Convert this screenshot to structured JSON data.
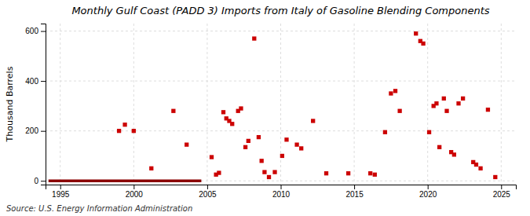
{
  "chart_data": {
    "type": "scatter",
    "title": "Monthly Gulf Coast (PADD 3) Imports from Italy of Gasoline Blending Components",
    "ylabel": "Thousand Barrels",
    "annotations": [
      "Source: U.S. Energy Information Administration"
    ],
    "xlim": [
      1994.0,
      2026.0
    ],
    "ylim": [
      -15,
      630
    ],
    "xticks": [
      1995,
      2000,
      2005,
      2010,
      2015,
      2020,
      2025
    ],
    "yticks": [
      0,
      200,
      400,
      600
    ],
    "grid": true,
    "series": [
      {
        "type": "line",
        "color": "#8b0000",
        "x": [
          1994.2,
          2004.6
        ],
        "values": [
          0,
          0
        ]
      },
      {
        "type": "scatter",
        "color": "#cc0000",
        "marker": "square",
        "x": [
          1999.0,
          1999.4,
          2000.0,
          2001.2,
          2002.7,
          2003.6,
          2005.3,
          2005.6,
          2005.8,
          2006.1,
          2006.3,
          2006.5,
          2006.7,
          2007.1,
          2007.3,
          2007.6,
          2007.8,
          2008.2,
          2008.5,
          2008.7,
          2008.9,
          2009.2,
          2009.6,
          2010.1,
          2010.4,
          2011.1,
          2011.4,
          2012.2,
          2013.1,
          2014.6,
          2016.1,
          2016.4,
          2017.1,
          2017.5,
          2017.8,
          2018.1,
          2019.2,
          2019.5,
          2019.7,
          2020.1,
          2020.4,
          2020.6,
          2020.8,
          2021.1,
          2021.3,
          2021.6,
          2021.8,
          2022.1,
          2022.4,
          2023.1,
          2023.3,
          2023.6,
          2024.1,
          2024.6
        ],
        "values": [
          200,
          225,
          200,
          50,
          280,
          145,
          95,
          25,
          32,
          275,
          250,
          240,
          228,
          280,
          290,
          135,
          160,
          570,
          175,
          80,
          35,
          15,
          35,
          100,
          165,
          145,
          130,
          240,
          30,
          30,
          30,
          25,
          195,
          350,
          360,
          280,
          590,
          560,
          550,
          195,
          300,
          310,
          135,
          330,
          280,
          115,
          105,
          310,
          330,
          75,
          65,
          50,
          285,
          15
        ]
      }
    ]
  }
}
